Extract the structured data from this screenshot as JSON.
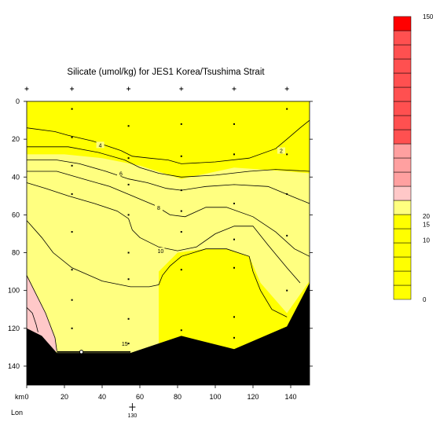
{
  "chart_data": {
    "type": "contour",
    "title": "Silicate (umol/kg) for JES1 Korea/Tsushima Strait",
    "xlabel": "km",
    "xlim": [
      0,
      150
    ],
    "ylim": [
      0,
      150
    ],
    "y_inverted": true,
    "x_ticks": [
      0,
      20,
      40,
      60,
      80,
      100,
      120,
      140
    ],
    "y_ticks": [
      0,
      20,
      40,
      60,
      80,
      100,
      120,
      140
    ],
    "lon_label": "Lon",
    "lon_tick": {
      "km": 56,
      "label": "130"
    },
    "contour_labels": [
      {
        "text": "2",
        "x": 135,
        "y": 26
      },
      {
        "text": "4",
        "x": 39,
        "y": 23
      },
      {
        "text": "6",
        "x": 50,
        "y": 38
      },
      {
        "text": "8",
        "x": 70,
        "y": 56
      },
      {
        "text": "10",
        "x": 71,
        "y": 79
      },
      {
        "text": "15",
        "x": 52,
        "y": 128
      }
    ],
    "station_x": [
      0,
      24,
      54,
      82,
      110,
      138
    ],
    "sample_points": [
      [
        24,
        4
      ],
      [
        24,
        19
      ],
      [
        24,
        34
      ],
      [
        24,
        49
      ],
      [
        24,
        69
      ],
      [
        24,
        89
      ],
      [
        24,
        105
      ],
      [
        24,
        120
      ],
      [
        54,
        13
      ],
      [
        54,
        30
      ],
      [
        54,
        44
      ],
      [
        54,
        60
      ],
      [
        54,
        80
      ],
      [
        54,
        94
      ],
      [
        54,
        115
      ],
      [
        54,
        128
      ],
      [
        82,
        12
      ],
      [
        82,
        29
      ],
      [
        82,
        47
      ],
      [
        82,
        58
      ],
      [
        82,
        69
      ],
      [
        82,
        89
      ],
      [
        82,
        121
      ],
      [
        110,
        12
      ],
      [
        110,
        28
      ],
      [
        110,
        54
      ],
      [
        110,
        73
      ],
      [
        110,
        88
      ],
      [
        110,
        114
      ],
      [
        110,
        125
      ],
      [
        138,
        4
      ],
      [
        138,
        28
      ],
      [
        138,
        49
      ],
      [
        138,
        71
      ],
      [
        138,
        100
      ]
    ],
    "colorbar": {
      "ticks": [
        {
          "value": 150,
          "label": "150"
        },
        {
          "value": 20,
          "label": "20"
        },
        {
          "value": 15,
          "label": "15"
        },
        {
          "value": 10,
          "label": "10"
        },
        {
          "value": 0,
          "label": "0"
        }
      ],
      "colors": {
        "low": "#ffff00",
        "mid": "#ffff80",
        "light_pink": "#ffc8c8",
        "pink": "#ffa0a0",
        "red_low": "#ff5050",
        "red_high": "#ff0000"
      }
    }
  }
}
